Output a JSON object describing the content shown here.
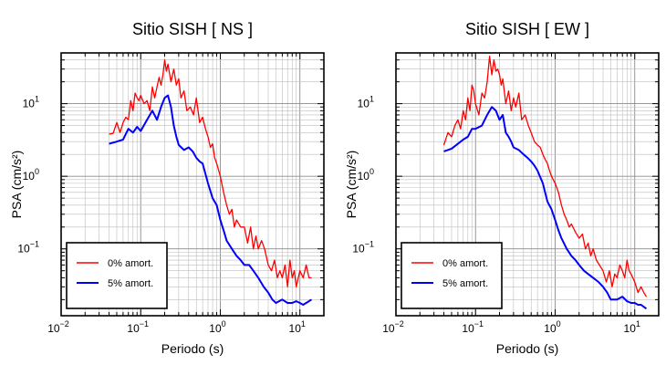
{
  "chart_data": [
    {
      "type": "line",
      "title": "Sitio SISH [ NS ]",
      "xlabel": "Periodo (s)",
      "ylabel": "PSA (cm/s²)",
      "xscale": "log",
      "yscale": "log",
      "xlim": [
        0.01,
        20
      ],
      "ylim": [
        0.012,
        50
      ],
      "grid": true,
      "legend_position": "bottom-left",
      "x_ticks": [
        {
          "b": "10",
          "e": "−2"
        },
        {
          "b": "10",
          "e": "−1"
        },
        {
          "b": "10",
          "e": "0"
        },
        {
          "b": "10",
          "e": "1"
        }
      ],
      "y_ticks": [
        {
          "b": "10",
          "e": "−1"
        },
        {
          "b": "10",
          "e": "0"
        },
        {
          "b": "10",
          "e": "1"
        }
      ],
      "series": [
        {
          "name": "0% amort.",
          "color": "#ff0000",
          "x": [
            0.04,
            0.045,
            0.05,
            0.055,
            0.06,
            0.065,
            0.07,
            0.075,
            0.08,
            0.085,
            0.09,
            0.095,
            0.1,
            0.11,
            0.12,
            0.13,
            0.14,
            0.15,
            0.16,
            0.17,
            0.18,
            0.19,
            0.2,
            0.21,
            0.22,
            0.24,
            0.26,
            0.28,
            0.3,
            0.32,
            0.35,
            0.38,
            0.42,
            0.46,
            0.5,
            0.55,
            0.6,
            0.65,
            0.7,
            0.75,
            0.8,
            0.85,
            0.9,
            1.0,
            1.1,
            1.2,
            1.3,
            1.4,
            1.5,
            1.6,
            1.8,
            2.0,
            2.2,
            2.4,
            2.6,
            2.8,
            3.0,
            3.3,
            3.6,
            4.0,
            4.4,
            4.8,
            5.2,
            5.6,
            6.0,
            6.5,
            7.0,
            7.5,
            8.0,
            8.5,
            9.0,
            10,
            11,
            12,
            13,
            14
          ],
          "y": [
            3.8,
            3.9,
            5.5,
            4.0,
            5.5,
            6.5,
            6.0,
            11,
            8.0,
            14,
            12,
            11,
            13,
            10,
            11,
            8,
            17,
            12,
            17,
            23,
            18,
            25,
            40,
            28,
            35,
            20,
            30,
            18,
            22,
            12,
            15,
            8,
            9,
            7,
            12,
            5.5,
            6.5,
            4.5,
            3.5,
            2.5,
            2.8,
            1.8,
            1.5,
            1.0,
            0.6,
            0.4,
            0.3,
            0.35,
            0.2,
            0.25,
            0.2,
            0.2,
            0.12,
            0.2,
            0.1,
            0.15,
            0.1,
            0.13,
            0.1,
            0.06,
            0.05,
            0.07,
            0.04,
            0.05,
            0.04,
            0.06,
            0.03,
            0.07,
            0.04,
            0.05,
            0.03,
            0.05,
            0.04,
            0.06,
            0.04,
            0.04
          ]
        },
        {
          "name": "5% amort.",
          "color": "#0000ff",
          "x": [
            0.04,
            0.05,
            0.06,
            0.07,
            0.08,
            0.09,
            0.1,
            0.12,
            0.14,
            0.16,
            0.18,
            0.2,
            0.22,
            0.24,
            0.26,
            0.28,
            0.3,
            0.35,
            0.4,
            0.45,
            0.5,
            0.55,
            0.6,
            0.7,
            0.8,
            0.9,
            1.0,
            1.1,
            1.2,
            1.4,
            1.6,
            1.8,
            2.0,
            2.3,
            2.6,
            3.0,
            3.5,
            4.0,
            4.5,
            5.0,
            6,
            7,
            8,
            9,
            10,
            11,
            12,
            14
          ],
          "y": [
            2.8,
            3.0,
            3.2,
            4.5,
            4.0,
            4.8,
            4.2,
            6,
            8,
            6,
            9,
            12,
            13,
            9,
            5,
            3.5,
            2.7,
            2.3,
            2.5,
            2.2,
            1.8,
            1.6,
            1.5,
            0.8,
            0.5,
            0.4,
            0.25,
            0.18,
            0.13,
            0.1,
            0.08,
            0.07,
            0.06,
            0.06,
            0.05,
            0.04,
            0.03,
            0.025,
            0.02,
            0.018,
            0.02,
            0.018,
            0.018,
            0.019,
            0.018,
            0.017,
            0.018,
            0.02
          ]
        }
      ]
    },
    {
      "type": "line",
      "title": "Sitio SISH [ EW ]",
      "xlabel": "Periodo (s)",
      "ylabel": "PSA (cm/s²)",
      "xscale": "log",
      "yscale": "log",
      "xlim": [
        0.01,
        20
      ],
      "ylim": [
        0.012,
        50
      ],
      "grid": true,
      "legend_position": "bottom-left",
      "x_ticks": [
        {
          "b": "10",
          "e": "−2"
        },
        {
          "b": "10",
          "e": "−1"
        },
        {
          "b": "10",
          "e": "0"
        },
        {
          "b": "10",
          "e": "1"
        }
      ],
      "y_ticks": [
        {
          "b": "10",
          "e": "−1"
        },
        {
          "b": "10",
          "e": "0"
        },
        {
          "b": "10",
          "e": "1"
        }
      ],
      "series": [
        {
          "name": "0% amort.",
          "color": "#ff0000",
          "x": [
            0.04,
            0.045,
            0.05,
            0.055,
            0.06,
            0.065,
            0.07,
            0.075,
            0.08,
            0.085,
            0.09,
            0.095,
            0.1,
            0.11,
            0.12,
            0.13,
            0.14,
            0.15,
            0.16,
            0.17,
            0.18,
            0.19,
            0.2,
            0.21,
            0.22,
            0.24,
            0.26,
            0.28,
            0.3,
            0.32,
            0.35,
            0.38,
            0.42,
            0.46,
            0.5,
            0.55,
            0.6,
            0.65,
            0.7,
            0.75,
            0.8,
            0.85,
            0.9,
            1.0,
            1.1,
            1.2,
            1.3,
            1.4,
            1.5,
            1.6,
            1.8,
            2.0,
            2.2,
            2.4,
            2.6,
            2.8,
            3.0,
            3.3,
            3.6,
            4.0,
            4.4,
            4.8,
            5.2,
            5.6,
            6.0,
            6.5,
            7.0,
            7.5,
            8.0,
            8.5,
            9.0,
            10,
            11,
            12,
            13,
            14
          ],
          "y": [
            2.7,
            4,
            3.5,
            5,
            6,
            4.5,
            8,
            6,
            12,
            8,
            18,
            15,
            10,
            7,
            14,
            12,
            20,
            45,
            25,
            40,
            28,
            30,
            25,
            18,
            22,
            10,
            15,
            8,
            12,
            9,
            14,
            6,
            7,
            5,
            4,
            3,
            2.7,
            2.5,
            2,
            1.7,
            1.5,
            1.2,
            1,
            0.8,
            0.6,
            0.4,
            0.3,
            0.25,
            0.2,
            0.22,
            0.17,
            0.14,
            0.16,
            0.1,
            0.12,
            0.08,
            0.1,
            0.07,
            0.06,
            0.05,
            0.035,
            0.05,
            0.03,
            0.045,
            0.04,
            0.06,
            0.05,
            0.04,
            0.07,
            0.05,
            0.045,
            0.035,
            0.025,
            0.03,
            0.025,
            0.022
          ]
        },
        {
          "name": "5% amort.",
          "color": "#0000ff",
          "x": [
            0.04,
            0.05,
            0.06,
            0.07,
            0.08,
            0.09,
            0.1,
            0.12,
            0.14,
            0.16,
            0.18,
            0.2,
            0.22,
            0.24,
            0.26,
            0.28,
            0.3,
            0.35,
            0.4,
            0.45,
            0.5,
            0.55,
            0.6,
            0.7,
            0.8,
            0.9,
            1.0,
            1.1,
            1.2,
            1.4,
            1.6,
            1.8,
            2.0,
            2.3,
            2.6,
            3.0,
            3.5,
            4.0,
            4.5,
            5.0,
            6,
            7,
            8,
            9,
            10,
            11,
            12,
            14
          ],
          "y": [
            2.2,
            2.4,
            2.8,
            3.2,
            3.5,
            4.5,
            4.5,
            5,
            7,
            9,
            8,
            6,
            7,
            4,
            3.5,
            3,
            2.5,
            2.3,
            2,
            1.8,
            1.6,
            1.4,
            1.2,
            0.8,
            0.45,
            0.35,
            0.25,
            0.18,
            0.14,
            0.1,
            0.08,
            0.07,
            0.06,
            0.05,
            0.045,
            0.04,
            0.035,
            0.03,
            0.025,
            0.02,
            0.02,
            0.022,
            0.019,
            0.018,
            0.018,
            0.017,
            0.017,
            0.015
          ]
        }
      ]
    }
  ]
}
